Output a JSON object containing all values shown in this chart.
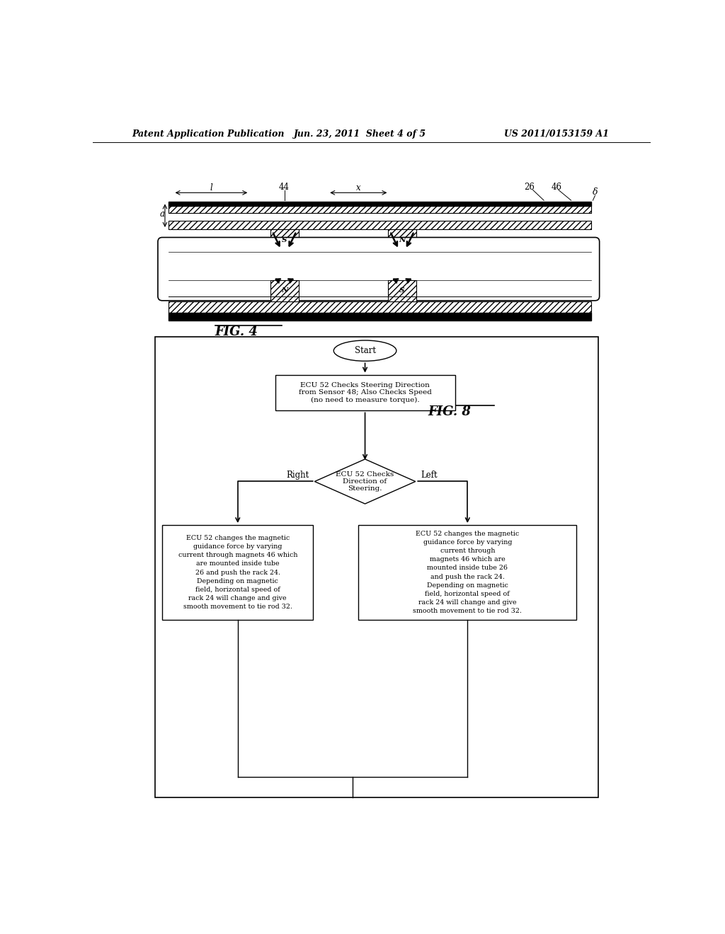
{
  "bg_color": "#ffffff",
  "header_left": "Patent Application Publication",
  "header_mid": "Jun. 23, 2011  Sheet 4 of 5",
  "header_right": "US 2011/0153159 A1",
  "fig4_label": "FIG. 4",
  "fig8_label": "FIG. 8",
  "start_label": "Start",
  "box1_text": "ECU 52 Checks Steering Direction\nfrom Sensor 48; Also Checks Speed\n(no need to measure torque).",
  "diamond_text": "ECU 52 Checks\nDirection of\nSteering.",
  "right_label": "Right",
  "left_label": "Left",
  "left_box_text": "ECU 52 changes the magnetic\nguidance force by varying\ncurrent through magnets 46 which\nare mounted inside tube\n26 and push the rack 24.\nDepending on magnetic\nfield, horizontal speed of\nrack 24 will change and give\nsmooth movement to tie rod 32.",
  "right_box_text": "ECU 52 changes the magnetic\nguidance force by varying\ncurrent through\nmagnets 46 which are\nmounted inside tube 26\nand push the rack 24.\nDepending on magnetic\nfield, horizontal speed of\nrack 24 will change and give\nsmooth movement to tie rod 32."
}
